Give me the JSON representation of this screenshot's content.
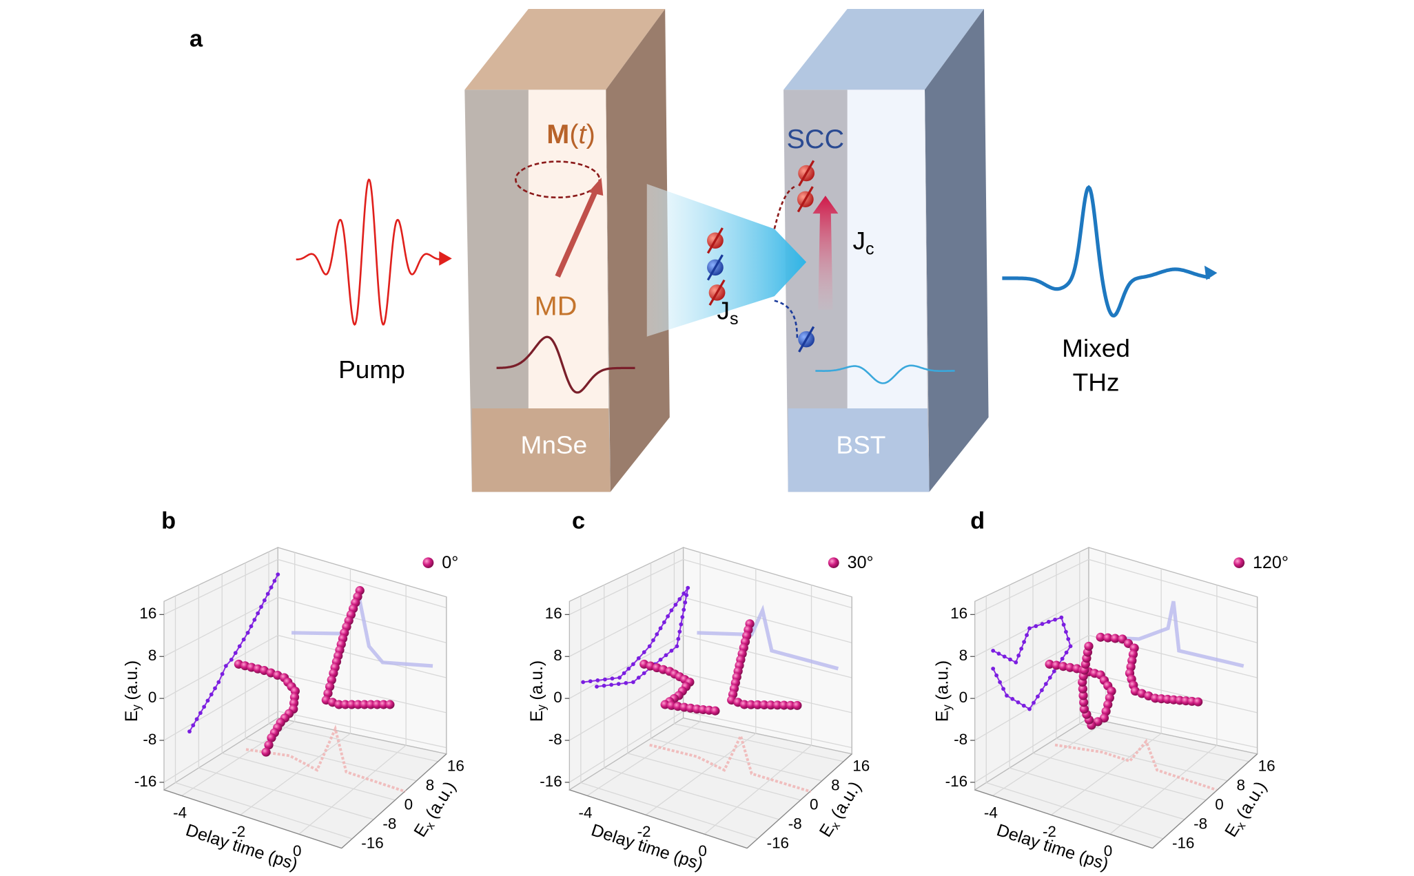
{
  "panel_a": {
    "label": "a",
    "pump": "Pump",
    "left_block": {
      "name": "MnSe",
      "dynamics": "MD",
      "magnetization": [
        "M",
        "(",
        "t",
        ")"
      ]
    },
    "spin_current": {
      "symbol": "J",
      "sub": "s"
    },
    "right_block": {
      "name": "BST",
      "process": "SCC",
      "charge_current": {
        "symbol": "J",
        "sub": "c"
      }
    },
    "output": [
      "Mixed",
      "THz"
    ]
  },
  "plots": [
    {
      "label": "b",
      "legend": "0°",
      "y_axis": {
        "symbol": "E",
        "sub": "y",
        "unit": "(a.u.)"
      },
      "x_axis": "Delay time (ps)",
      "z_axis": {
        "symbol": "E",
        "sub": "x",
        "unit": "(a.u.)"
      },
      "yticks": [
        "16",
        "8",
        "0",
        "-8",
        "-16"
      ],
      "xticks": [
        "-4",
        "-2",
        "0"
      ],
      "zticks": [
        "16",
        "8",
        "0",
        "-8",
        "-16"
      ]
    },
    {
      "label": "c",
      "legend": "30°",
      "y_axis": {
        "symbol": "E",
        "sub": "y",
        "unit": "(a.u.)"
      },
      "x_axis": "Delay time (ps)",
      "z_axis": {
        "symbol": "E",
        "sub": "x",
        "unit": "(a.u.)"
      },
      "yticks": [
        "16",
        "8",
        "0",
        "-8",
        "-16"
      ],
      "xticks": [
        "-4",
        "-2",
        "0"
      ],
      "zticks": [
        "16",
        "8",
        "0",
        "-8",
        "-16"
      ]
    },
    {
      "label": "d",
      "legend": "120°",
      "y_axis": {
        "symbol": "E",
        "sub": "y",
        "unit": "(a.u.)"
      },
      "x_axis": "Delay time (ps)",
      "z_axis": {
        "symbol": "E",
        "sub": "x",
        "unit": "(a.u.)"
      },
      "yticks": [
        "16",
        "8",
        "0",
        "-8",
        "-16"
      ],
      "xticks": [
        "-4",
        "-2",
        "0"
      ],
      "zticks": [
        "16",
        "8",
        "0",
        "-8",
        "-16"
      ]
    }
  ]
}
